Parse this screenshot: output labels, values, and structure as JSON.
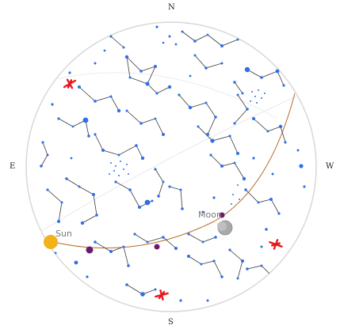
{
  "compass": {
    "north": "N",
    "south": "S",
    "east": "E",
    "west": "W"
  },
  "bodies": {
    "sun_label": "Sun",
    "moon_label": "Moon"
  },
  "colors": {
    "star": "#2e6fe8",
    "constellation_line": "#3a3a3a",
    "ecliptic": "#b86a2a",
    "horizon": "#d8d8d8",
    "sun": "#f2b21c",
    "moon": "#a9a9a9",
    "planet": "#6b1a6b",
    "aircraft": "#e8161b"
  },
  "icons": {
    "aircraft": "airplane-icon",
    "sun": "sun-icon",
    "moon": "moon-icon",
    "planet": "planet-icon"
  }
}
